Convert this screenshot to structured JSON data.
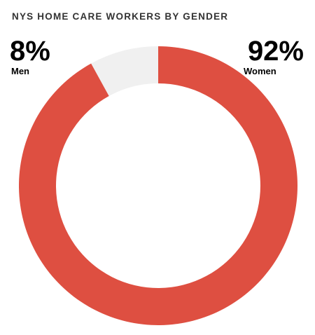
{
  "chart_data": {
    "type": "donut",
    "title": "NYS HOME CARE WORKERS BY GENDER",
    "categories": [
      "Men",
      "Women"
    ],
    "values": [
      8,
      92
    ],
    "value_labels": [
      "8%",
      "92%"
    ],
    "colors": [
      "#f0f0f0",
      "#de4f41"
    ]
  }
}
